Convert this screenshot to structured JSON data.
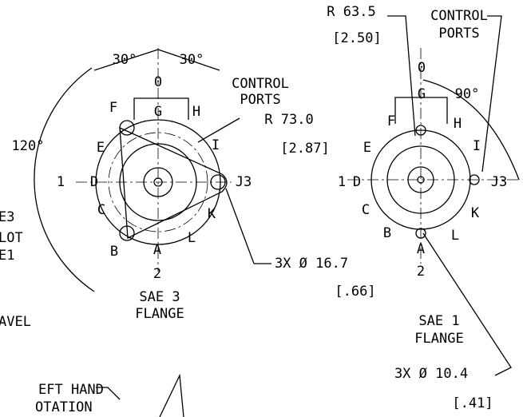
{
  "left_flange": {
    "top_label": "0",
    "angle_left": "30°",
    "angle_right": "30°",
    "angle_total": "120°",
    "control_ports": [
      "CONTROL",
      "PORTS"
    ],
    "radius": "R 73.0",
    "radius_in": "[2.87]",
    "port_labels": [
      "F",
      "G",
      "H",
      "E",
      "I",
      "1",
      "D",
      "J3",
      "C",
      "K",
      "B",
      "L",
      "A",
      "2"
    ],
    "name": [
      "SAE 3",
      "FLANGE"
    ],
    "hole_dim": "3X  Ø  16.7",
    "hole_dim_in": "[.66]"
  },
  "right_flange": {
    "radius": "R 63.5",
    "radius_in": "[2.50]",
    "control_ports": [
      "CONTROL",
      "PORTS"
    ],
    "top_label": "0",
    "angle": "90°",
    "port_labels": [
      "G",
      "F",
      "H",
      "E",
      "I",
      "1",
      "D",
      "J3",
      "C",
      "K",
      "B",
      "L",
      "A",
      "2"
    ],
    "name": [
      "SAE 1",
      "FLANGE"
    ],
    "hole_dim": "3X  Ø  10.4",
    "hole_dim_in": "[.41]"
  },
  "cutoff_labels": [
    "E3",
    "LOT",
    "E1",
    "AVEL"
  ],
  "rotation_note": [
    "EFT HAND",
    "OTATION"
  ]
}
